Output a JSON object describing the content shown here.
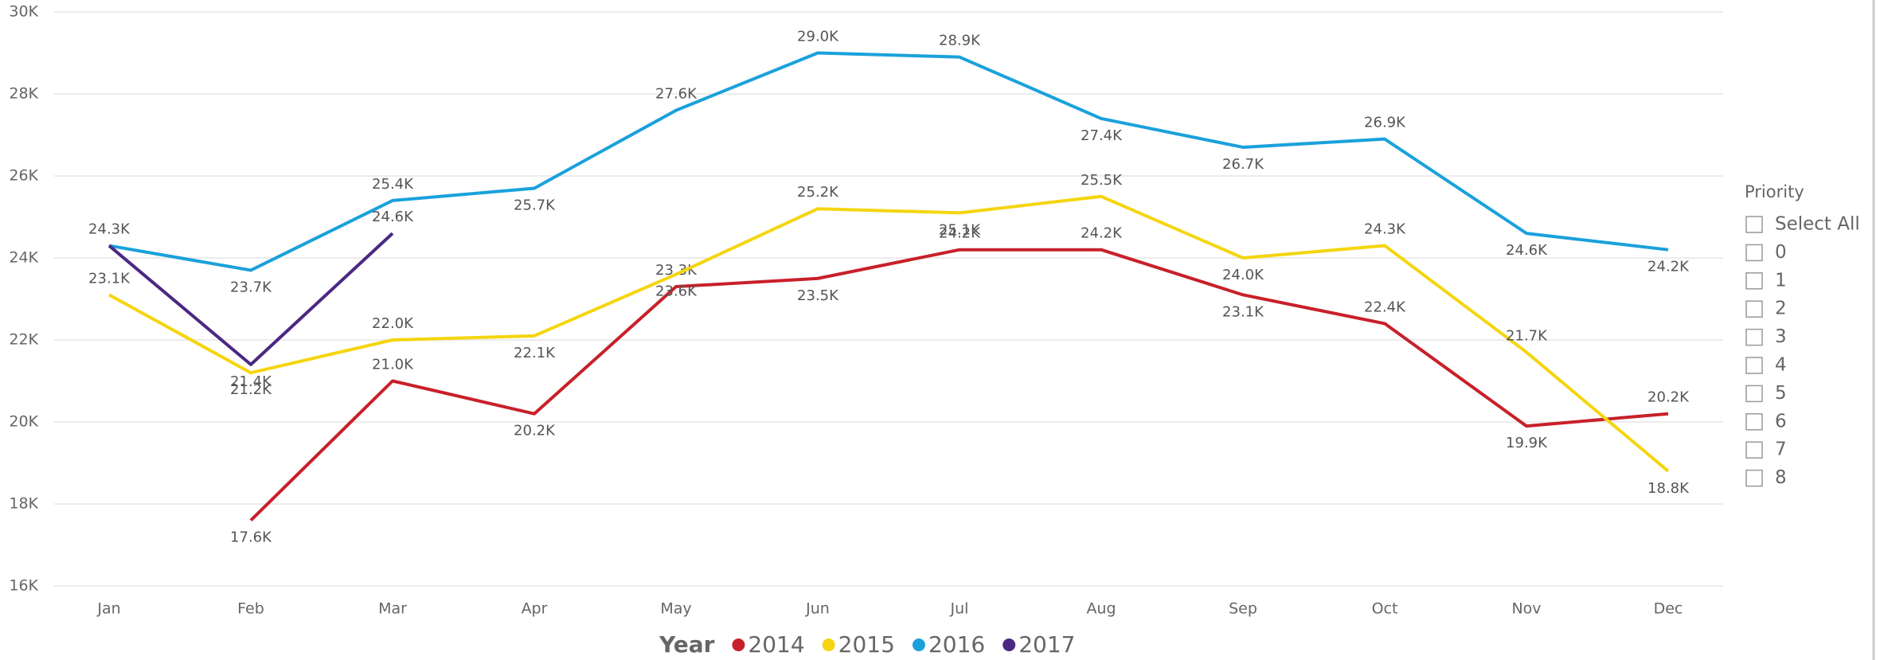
{
  "chart_data": {
    "type": "line",
    "categories": [
      "Jan",
      "Feb",
      "Mar",
      "Apr",
      "May",
      "Jun",
      "Jul",
      "Aug",
      "Sep",
      "Oct",
      "Nov",
      "Dec"
    ],
    "ylim": [
      16000,
      30000
    ],
    "yticks": [
      {
        "value": 16000,
        "label": "16K"
      },
      {
        "value": 18000,
        "label": "18K"
      },
      {
        "value": 20000,
        "label": "20K"
      },
      {
        "value": 22000,
        "label": "22K"
      },
      {
        "value": 24000,
        "label": "24K"
      },
      {
        "value": 26000,
        "label": "26K"
      },
      {
        "value": 28000,
        "label": "28K"
      },
      {
        "value": 30000,
        "label": "30K"
      }
    ],
    "grid": true,
    "legend_title": "Year",
    "legend": "bottom",
    "series": [
      {
        "name": "2014",
        "color": "#c8202a",
        "values": [
          null,
          17600,
          21000,
          20200,
          23300,
          23500,
          24200,
          24200,
          23100,
          22400,
          19900,
          20200
        ],
        "value_labels": [
          null,
          "17.6K",
          "21.0K",
          "20.2K",
          "23.3K",
          "23.5K",
          "24.2K",
          "24.2K",
          "23.1K",
          "22.4K",
          "19.9K",
          "20.2K"
        ]
      },
      {
        "name": "2015",
        "color": "#f5d50f",
        "values": [
          23100,
          21200,
          22000,
          22100,
          23600,
          25200,
          25100,
          25500,
          24000,
          24300,
          21700,
          18800
        ],
        "value_labels": [
          "23.1K",
          "21.2K",
          "22.0K",
          "22.1K",
          "23.6K",
          "25.2K",
          "25.1K",
          "25.5K",
          "24.0K",
          "24.3K",
          "21.7K",
          "18.8K"
        ]
      },
      {
        "name": "2016",
        "color": "#1aa1db",
        "values": [
          24300,
          23700,
          25400,
          25700,
          27600,
          29000,
          28900,
          27400,
          26700,
          26900,
          24600,
          24200
        ],
        "value_labels": [
          "24.3K",
          "23.7K",
          "25.4K",
          "25.7K",
          "27.6K",
          "29.0K",
          "28.9K",
          "27.4K",
          "26.7K",
          "26.9K",
          "24.6K",
          "24.2K"
        ]
      },
      {
        "name": "2017",
        "color": "#4b2882",
        "values": [
          24300,
          21400,
          24600,
          null,
          null,
          null,
          null,
          null,
          null,
          null,
          null,
          null
        ],
        "value_labels": [
          null,
          "21.4K",
          "24.6K",
          null,
          null,
          null,
          null,
          null,
          null,
          null,
          null,
          null
        ]
      }
    ]
  },
  "slicer": {
    "title": "Priority",
    "items": [
      "Select All",
      "0",
      "1",
      "2",
      "3",
      "4",
      "5",
      "6",
      "7",
      "8"
    ]
  }
}
